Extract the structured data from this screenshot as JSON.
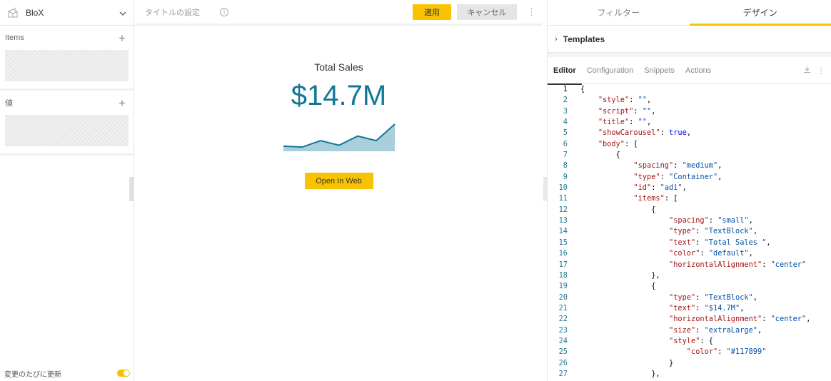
{
  "left": {
    "app_name": "BloX",
    "items_label": "Items",
    "values_label": "値",
    "footer_label": "変更のたびに更新"
  },
  "center": {
    "title_placeholder": "タイトルの設定",
    "apply_label": "適用",
    "cancel_label": "キャンセル",
    "card": {
      "caption": "Total Sales",
      "kpi": "$14.7M",
      "kpi_color": "#117899",
      "button_label": "Open In Web"
    },
    "accent": "#f8c300"
  },
  "chart_data": {
    "type": "area",
    "x": [
      1,
      2,
      3,
      4,
      5,
      6,
      7
    ],
    "values": [
      4,
      3,
      10,
      5,
      15,
      10,
      28
    ],
    "color": "#117899",
    "fill": "#a9cfdc",
    "grid": false,
    "legend": "none"
  },
  "right": {
    "tabs": [
      {
        "label": "フィルター",
        "active": false
      },
      {
        "label": "デザイン",
        "active": true
      }
    ],
    "templates_label": "Templates",
    "subtabs": [
      {
        "label": "Editor",
        "active": true
      },
      {
        "label": "Configuration",
        "active": false
      },
      {
        "label": "Snippets",
        "active": false
      },
      {
        "label": "Actions",
        "active": false
      }
    ],
    "code_lines": [
      "{",
      "    \"style\": \"\",",
      "    \"script\": \"\",",
      "    \"title\": \"\",",
      "    \"showCarousel\": true,",
      "    \"body\": [",
      "        {",
      "            \"spacing\": \"medium\",",
      "            \"type\": \"Container\",",
      "            \"id\": \"adi\",",
      "            \"items\": [",
      "                {",
      "                    \"spacing\": \"small\",",
      "                    \"type\": \"TextBlock\",",
      "                    \"text\": \"Total Sales \",",
      "                    \"color\": \"default\",",
      "                    \"horizontalAlignment\": \"center\"",
      "                },",
      "                {",
      "                    \"type\": \"TextBlock\",",
      "                    \"text\": \"$14.7M\",",
      "                    \"horizontalAlignment\": \"center\",",
      "                    \"size\": \"extraLarge\",",
      "                    \"style\": {",
      "                        \"color\": \"#117899\"",
      "                    }",
      "                },"
    ]
  }
}
